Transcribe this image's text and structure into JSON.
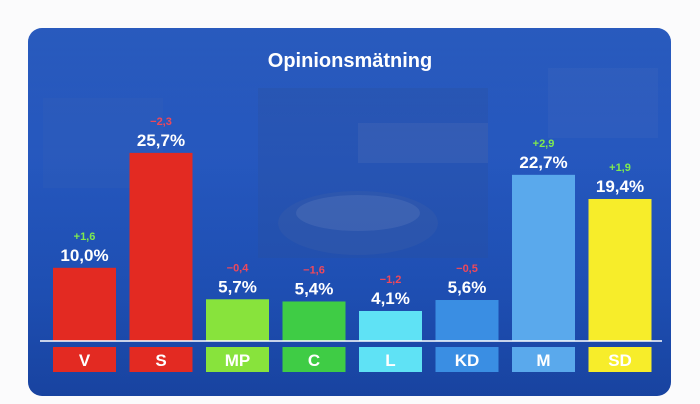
{
  "chart_data": {
    "type": "bar",
    "title": "Opinionsmätning",
    "categories": [
      "V",
      "S",
      "MP",
      "C",
      "L",
      "KD",
      "M",
      "SD"
    ],
    "values": [
      10.0,
      25.7,
      5.7,
      5.4,
      4.1,
      5.6,
      22.7,
      19.4
    ],
    "value_labels": [
      "10,0%",
      "25,7%",
      "5,7%",
      "5,4%",
      "4,1%",
      "5,6%",
      "22,7%",
      "19,4%"
    ],
    "changes": [
      "+1,6",
      "−2,3",
      "−0,4",
      "−1,6",
      "−1,2",
      "−0,5",
      "+2,9",
      "+1,9"
    ],
    "change_direction": [
      "up",
      "down",
      "down",
      "down",
      "down",
      "down",
      "up",
      "up"
    ],
    "bar_colors": [
      "#e32a22",
      "#e32a22",
      "#88e33c",
      "#3fcc45",
      "#5fe2f5",
      "#3a8ee3",
      "#5aa9ec",
      "#f7ed2a"
    ],
    "label_box_colors": [
      "#e32a22",
      "#e32a22",
      "#88e33c",
      "#3fcc45",
      "#5fe2f5",
      "#3a8ee3",
      "#5aa9ec",
      "#f7ed2a"
    ],
    "change_colors": {
      "up": "#7fea4f",
      "down": "#f0485a"
    },
    "ylim": [
      0,
      26
    ],
    "grid": false,
    "legend": "none"
  }
}
